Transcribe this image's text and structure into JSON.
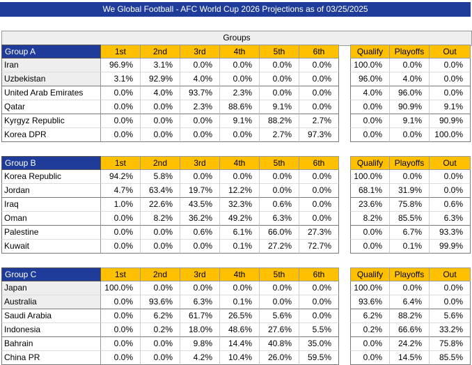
{
  "title": "We Global Football - AFC World Cup 2026 Projections as of 03/25/2025",
  "groups_header": "Groups",
  "groups": [
    {
      "name": "Group A",
      "columns": [
        "1st",
        "2nd",
        "3rd",
        "4th",
        "5th",
        "6th"
      ],
      "outcome_columns": [
        "Qualify",
        "Playoffs",
        "Out"
      ],
      "rows": [
        {
          "team": "Iran",
          "positions": [
            "96.9%",
            "3.1%",
            "0.0%",
            "0.0%",
            "0.0%",
            "0.0%"
          ],
          "outcomes": [
            "100.0%",
            "0.0%",
            "0.0%"
          ]
        },
        {
          "team": "Uzbekistan",
          "positions": [
            "3.1%",
            "92.9%",
            "4.0%",
            "0.0%",
            "0.0%",
            "0.0%"
          ],
          "outcomes": [
            "96.0%",
            "4.0%",
            "0.0%"
          ]
        },
        {
          "team": "United Arab Emirates",
          "positions": [
            "0.0%",
            "4.0%",
            "93.7%",
            "2.3%",
            "0.0%",
            "0.0%"
          ],
          "outcomes": [
            "4.0%",
            "96.0%",
            "0.0%"
          ]
        },
        {
          "team": "Qatar",
          "positions": [
            "0.0%",
            "0.0%",
            "2.3%",
            "88.6%",
            "9.1%",
            "0.0%"
          ],
          "outcomes": [
            "0.0%",
            "90.9%",
            "9.1%"
          ]
        },
        {
          "team": "Kyrgyz Republic",
          "positions": [
            "0.0%",
            "0.0%",
            "0.0%",
            "9.1%",
            "88.2%",
            "2.7%"
          ],
          "outcomes": [
            "0.0%",
            "9.1%",
            "90.9%"
          ]
        },
        {
          "team": "Korea DPR",
          "positions": [
            "0.0%",
            "0.0%",
            "0.0%",
            "0.0%",
            "2.7%",
            "97.3%"
          ],
          "outcomes": [
            "0.0%",
            "0.0%",
            "100.0%"
          ]
        }
      ]
    },
    {
      "name": "Group B",
      "columns": [
        "1st",
        "2nd",
        "3rd",
        "4th",
        "5th",
        "6th"
      ],
      "outcome_columns": [
        "Qualify",
        "Playoffs",
        "Out"
      ],
      "rows": [
        {
          "team": "Korea Republic",
          "positions": [
            "94.2%",
            "5.8%",
            "0.0%",
            "0.0%",
            "0.0%",
            "0.0%"
          ],
          "outcomes": [
            "100.0%",
            "0.0%",
            "0.0%"
          ]
        },
        {
          "team": "Jordan",
          "positions": [
            "4.7%",
            "63.4%",
            "19.7%",
            "12.2%",
            "0.0%",
            "0.0%"
          ],
          "outcomes": [
            "68.1%",
            "31.9%",
            "0.0%"
          ]
        },
        {
          "team": "Iraq",
          "positions": [
            "1.0%",
            "22.6%",
            "43.5%",
            "32.3%",
            "0.6%",
            "0.0%"
          ],
          "outcomes": [
            "23.6%",
            "75.8%",
            "0.6%"
          ]
        },
        {
          "team": "Oman",
          "positions": [
            "0.0%",
            "8.2%",
            "36.2%",
            "49.2%",
            "6.3%",
            "0.0%"
          ],
          "outcomes": [
            "8.2%",
            "85.5%",
            "6.3%"
          ]
        },
        {
          "team": "Palestine",
          "positions": [
            "0.0%",
            "0.0%",
            "0.6%",
            "6.1%",
            "66.0%",
            "27.3%"
          ],
          "outcomes": [
            "0.0%",
            "6.7%",
            "93.3%"
          ]
        },
        {
          "team": "Kuwait",
          "positions": [
            "0.0%",
            "0.0%",
            "0.0%",
            "0.1%",
            "27.2%",
            "72.7%"
          ],
          "outcomes": [
            "0.0%",
            "0.1%",
            "99.9%"
          ]
        }
      ]
    },
    {
      "name": "Group C",
      "columns": [
        "1st",
        "2nd",
        "3rd",
        "4th",
        "5th",
        "6th"
      ],
      "outcome_columns": [
        "Qualify",
        "Playoffs",
        "Out"
      ],
      "rows": [
        {
          "team": "Japan",
          "positions": [
            "100.0%",
            "0.0%",
            "0.0%",
            "0.0%",
            "0.0%",
            "0.0%"
          ],
          "outcomes": [
            "100.0%",
            "0.0%",
            "0.0%"
          ]
        },
        {
          "team": "Australia",
          "positions": [
            "0.0%",
            "93.6%",
            "6.3%",
            "0.1%",
            "0.0%",
            "0.0%"
          ],
          "outcomes": [
            "93.6%",
            "6.4%",
            "0.0%"
          ]
        },
        {
          "team": "Saudi Arabia",
          "positions": [
            "0.0%",
            "6.2%",
            "61.7%",
            "26.5%",
            "5.6%",
            "0.0%"
          ],
          "outcomes": [
            "6.2%",
            "88.2%",
            "5.6%"
          ]
        },
        {
          "team": "Indonesia",
          "positions": [
            "0.0%",
            "0.2%",
            "18.0%",
            "48.6%",
            "27.6%",
            "5.5%"
          ],
          "outcomes": [
            "0.2%",
            "66.6%",
            "33.2%"
          ]
        },
        {
          "team": "Bahrain",
          "positions": [
            "0.0%",
            "0.0%",
            "9.8%",
            "14.4%",
            "40.8%",
            "35.0%"
          ],
          "outcomes": [
            "0.0%",
            "24.2%",
            "75.8%"
          ]
        },
        {
          "team": "China PR",
          "positions": [
            "0.0%",
            "0.0%",
            "4.2%",
            "10.4%",
            "26.0%",
            "59.5%"
          ],
          "outcomes": [
            "0.0%",
            "14.5%",
            "85.5%"
          ]
        }
      ]
    }
  ]
}
